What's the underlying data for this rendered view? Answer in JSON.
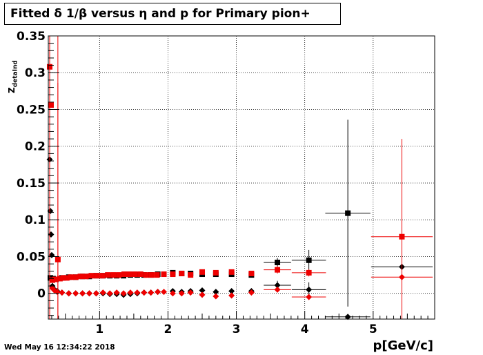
{
  "title": "Fitted δ 1/β versus η and p for Primary pion+",
  "datestamp": "Wed May 16 12:34:22 2018",
  "chart_data": {
    "type": "scatter",
    "title": "Fitted δ 1/β versus η and p for Primary pion+",
    "xlabel": "p[GeV/c]",
    "ylabel": "Z",
    "ylabel_sub": "detaInd",
    "xlim": [
      0.25,
      5.9
    ],
    "ylim": [
      -0.035,
      0.35
    ],
    "xticks": [
      1,
      2,
      3,
      4,
      5
    ],
    "xtick_labels": [
      "1",
      "2",
      "3",
      "4",
      "5"
    ],
    "yticks": [
      0,
      0.05,
      0.1,
      0.15,
      0.2,
      0.25,
      0.3,
      0.35
    ],
    "ytick_labels": [
      "0",
      "0.05",
      "0.1",
      "0.15",
      "0.2",
      "0.25",
      "0.3",
      "0.35"
    ],
    "grid": true,
    "colors": {
      "black": "#000000",
      "red": "#ee0000"
    },
    "series": [
      {
        "marker": "square",
        "color": "#000000",
        "points": [
          {
            "x": 0.28,
            "y": 0.021
          },
          {
            "x": 0.32,
            "y": 0.02
          },
          {
            "x": 0.36,
            "y": 0.019
          },
          {
            "x": 0.45,
            "y": 0.021
          },
          {
            "x": 0.55,
            "y": 0.022
          },
          {
            "x": 0.65,
            "y": 0.022
          },
          {
            "x": 0.75,
            "y": 0.023
          },
          {
            "x": 0.85,
            "y": 0.023
          },
          {
            "x": 0.95,
            "y": 0.024
          },
          {
            "x": 1.05,
            "y": 0.024
          },
          {
            "x": 1.15,
            "y": 0.024
          },
          {
            "x": 1.25,
            "y": 0.024
          },
          {
            "x": 1.35,
            "y": 0.024
          },
          {
            "x": 1.45,
            "y": 0.025
          },
          {
            "x": 1.55,
            "y": 0.025
          },
          {
            "x": 1.65,
            "y": 0.025
          },
          {
            "x": 1.75,
            "y": 0.025
          },
          {
            "x": 1.85,
            "y": 0.026
          },
          {
            "x": 2.07,
            "y": 0.028
          },
          {
            "x": 2.2,
            "y": 0.027
          },
          {
            "x": 2.33,
            "y": 0.027
          },
          {
            "x": 2.5,
            "y": 0.026
          },
          {
            "x": 2.7,
            "y": 0.026
          },
          {
            "x": 2.93,
            "y": 0.026
          },
          {
            "x": 3.22,
            "y": 0.025
          },
          {
            "x": 3.6,
            "y": 0.042,
            "xerr": 0.2,
            "yerr": 0.006
          },
          {
            "x": 4.06,
            "y": 0.045,
            "xerr": 0.25,
            "yerr": 0.014
          },
          {
            "x": 4.63,
            "y": 0.109,
            "xerr": 0.33,
            "yerr": 0.127
          }
        ]
      },
      {
        "marker": "diamond",
        "color": "#000000",
        "points": [
          {
            "x": 0.27,
            "y": 0.182
          },
          {
            "x": 0.28,
            "y": 0.112
          },
          {
            "x": 0.29,
            "y": 0.08
          },
          {
            "x": 0.3,
            "y": 0.052
          },
          {
            "x": 0.31,
            "y": 0.01
          },
          {
            "x": 0.34,
            "y": 0.005
          },
          {
            "x": 0.38,
            "y": 0.003
          },
          {
            "x": 0.45,
            "y": 0.001
          },
          {
            "x": 0.55,
            "y": 0.0
          },
          {
            "x": 0.65,
            "y": 0.0
          },
          {
            "x": 0.75,
            "y": 0.0
          },
          {
            "x": 0.85,
            "y": 0.0
          },
          {
            "x": 0.95,
            "y": 0.0
          },
          {
            "x": 1.05,
            "y": 0.0
          },
          {
            "x": 1.15,
            "y": -0.001
          },
          {
            "x": 1.25,
            "y": -0.001
          },
          {
            "x": 1.35,
            "y": -0.002
          },
          {
            "x": 1.45,
            "y": -0.001
          },
          {
            "x": 1.55,
            "y": 0.0
          },
          {
            "x": 1.65,
            "y": 0.001
          },
          {
            "x": 1.75,
            "y": 0.001
          },
          {
            "x": 1.85,
            "y": 0.002
          },
          {
            "x": 2.07,
            "y": 0.003
          },
          {
            "x": 2.2,
            "y": 0.002
          },
          {
            "x": 2.33,
            "y": 0.003
          },
          {
            "x": 2.5,
            "y": 0.004
          },
          {
            "x": 2.7,
            "y": 0.002
          },
          {
            "x": 2.93,
            "y": 0.003
          },
          {
            "x": 3.22,
            "y": 0.003
          },
          {
            "x": 3.6,
            "y": 0.011,
            "xerr": 0.2,
            "yerr": 0.006
          },
          {
            "x": 4.06,
            "y": 0.005,
            "xerr": 0.25,
            "yerr": 0.01
          },
          {
            "x": 4.63,
            "y": -0.032,
            "xerr": 0.33
          },
          {
            "x": 5.42,
            "y": 0.036,
            "xerr": 0.45,
            "yerr": 0.004
          }
        ]
      },
      {
        "marker": "square",
        "color": "#ee0000",
        "points": [
          {
            "x": 0.27,
            "y": 0.308
          },
          {
            "x": 0.29,
            "y": 0.256
          },
          {
            "x": 0.31,
            "y": 0.018
          },
          {
            "x": 0.35,
            "y": 0.019
          },
          {
            "x": 0.39,
            "y": 0.046,
            "yerr": 0.24
          },
          {
            "x": 0.42,
            "y": 0.02
          },
          {
            "x": 0.47,
            "y": 0.021
          },
          {
            "x": 0.52,
            "y": 0.021
          },
          {
            "x": 0.58,
            "y": 0.022
          },
          {
            "x": 0.65,
            "y": 0.022
          },
          {
            "x": 0.72,
            "y": 0.023
          },
          {
            "x": 0.8,
            "y": 0.023
          },
          {
            "x": 0.88,
            "y": 0.024
          },
          {
            "x": 0.96,
            "y": 0.024
          },
          {
            "x": 1.04,
            "y": 0.024
          },
          {
            "x": 1.12,
            "y": 0.025
          },
          {
            "x": 1.2,
            "y": 0.025
          },
          {
            "x": 1.28,
            "y": 0.025
          },
          {
            "x": 1.36,
            "y": 0.026
          },
          {
            "x": 1.44,
            "y": 0.026
          },
          {
            "x": 1.52,
            "y": 0.026
          },
          {
            "x": 1.6,
            "y": 0.026
          },
          {
            "x": 1.68,
            "y": 0.025
          },
          {
            "x": 1.76,
            "y": 0.025
          },
          {
            "x": 1.84,
            "y": 0.025
          },
          {
            "x": 1.94,
            "y": 0.026
          },
          {
            "x": 2.07,
            "y": 0.026
          },
          {
            "x": 2.2,
            "y": 0.027
          },
          {
            "x": 2.33,
            "y": 0.025
          },
          {
            "x": 2.5,
            "y": 0.029
          },
          {
            "x": 2.7,
            "y": 0.028
          },
          {
            "x": 2.93,
            "y": 0.029
          },
          {
            "x": 3.22,
            "y": 0.027
          },
          {
            "x": 3.6,
            "y": 0.032,
            "xerr": 0.2,
            "yerr": 0.005
          },
          {
            "x": 4.06,
            "y": 0.028,
            "xerr": 0.25,
            "yerr": 0.005
          },
          {
            "x": 5.42,
            "y": 0.077,
            "xerr": 0.45,
            "yerr": 0.133
          }
        ]
      },
      {
        "marker": "diamond",
        "color": "#ee0000",
        "points": [
          {
            "x": 0.31,
            "y": 0.007
          },
          {
            "x": 0.34,
            "y": 0.004
          },
          {
            "x": 0.38,
            "y": 0.002
          },
          {
            "x": 0.45,
            "y": 0.001
          },
          {
            "x": 0.55,
            "y": 0.0
          },
          {
            "x": 0.65,
            "y": 0.0
          },
          {
            "x": 0.75,
            "y": 0.0
          },
          {
            "x": 0.85,
            "y": 0.0
          },
          {
            "x": 0.95,
            "y": 0.0
          },
          {
            "x": 1.05,
            "y": 0.001
          },
          {
            "x": 1.15,
            "y": 0.0
          },
          {
            "x": 1.25,
            "y": 0.001
          },
          {
            "x": 1.35,
            "y": 0.0
          },
          {
            "x": 1.45,
            "y": 0.001
          },
          {
            "x": 1.55,
            "y": 0.001
          },
          {
            "x": 1.65,
            "y": 0.001
          },
          {
            "x": 1.75,
            "y": 0.001
          },
          {
            "x": 1.85,
            "y": 0.002
          },
          {
            "x": 1.94,
            "y": 0.002
          },
          {
            "x": 2.07,
            "y": 0.0
          },
          {
            "x": 2.2,
            "y": 0.0
          },
          {
            "x": 2.33,
            "y": 0.001
          },
          {
            "x": 2.5,
            "y": -0.002
          },
          {
            "x": 2.7,
            "y": -0.004
          },
          {
            "x": 2.93,
            "y": -0.003
          },
          {
            "x": 3.22,
            "y": 0.001
          },
          {
            "x": 3.6,
            "y": 0.005,
            "xerr": 0.2,
            "yerr": 0.003
          },
          {
            "x": 4.06,
            "y": -0.005,
            "xerr": 0.25,
            "yerr": 0.004
          },
          {
            "x": 5.42,
            "y": 0.022,
            "xerr": 0.45,
            "yerr": 0.004
          }
        ]
      }
    ]
  }
}
